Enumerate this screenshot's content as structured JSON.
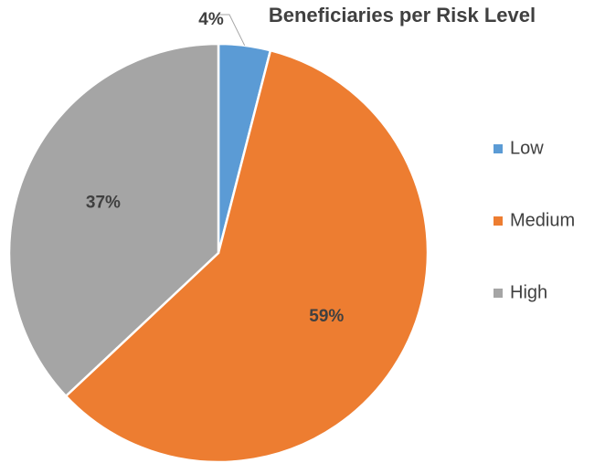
{
  "chart_data": {
    "type": "pie",
    "title": "Beneficiaries per Risk Level",
    "categories": [
      "Low",
      "Medium",
      "High"
    ],
    "values": [
      4,
      59,
      37
    ],
    "value_labels": [
      "4%",
      "59%",
      "37%"
    ],
    "colors": [
      "#5b9bd5",
      "#ed7d31",
      "#a5a5a5"
    ],
    "legend": "right"
  }
}
